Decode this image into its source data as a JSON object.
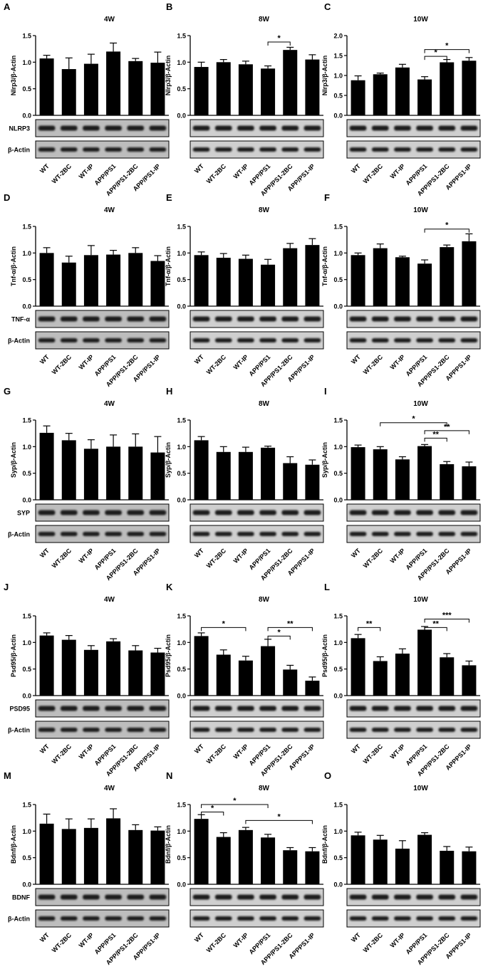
{
  "figure": {
    "groups": [
      "WT",
      "WT-2BC",
      "WT-IP",
      "APP/PS1",
      "APP/PS1-2BC",
      "APP/PS1-IP"
    ],
    "groups_alt": [
      "WT",
      "WT-2BC",
      "WT-IP",
      "APP/PS1",
      "APP/PS1-2BC",
      "APPPS1-IP"
    ],
    "blot_colors": {
      "band": "#1c1c1c",
      "background": "#cfcfcf",
      "background_4w": "#bdbdbd"
    }
  },
  "chart_data": [
    {
      "type": "bar",
      "panel": "A",
      "title": "4W",
      "ylabel": "Nlrp3/β-Actin",
      "ylim": [
        0,
        1.5
      ],
      "ticks": [
        "0.0",
        "0.5",
        "1.0",
        "1.5"
      ],
      "xlabels": "groups",
      "values": [
        1.07,
        0.87,
        0.97,
        1.2,
        1.02,
        0.99
      ],
      "errors": [
        0.06,
        0.21,
        0.18,
        0.16,
        0.05,
        0.2
      ],
      "blots": [
        "NLRP3",
        "β-Actin"
      ],
      "sig": []
    },
    {
      "type": "bar",
      "panel": "B",
      "title": "8W",
      "ylabel": "Nlrp3/β-Actin",
      "ylim": [
        0,
        1.5
      ],
      "ticks": [
        "0.0",
        "0.5",
        "1.0",
        "1.5"
      ],
      "xlabels": "groups",
      "values": [
        0.91,
        1.0,
        0.96,
        0.88,
        1.23,
        1.05
      ],
      "errors": [
        0.09,
        0.05,
        0.06,
        0.05,
        0.05,
        0.09
      ],
      "blots": [
        "",
        ""
      ],
      "sig": [
        {
          "from": 3,
          "to": 4,
          "y": 1.38,
          "label": "*"
        }
      ]
    },
    {
      "type": "bar",
      "panel": "C",
      "title": "10W",
      "ylabel": "Nlrp3/β-Actin",
      "ylim": [
        0,
        2.0
      ],
      "ticks": [
        "0.0",
        "0.5",
        "1.0",
        "1.5",
        "2.0"
      ],
      "xlabels": "groups_alt",
      "values": [
        0.88,
        1.03,
        1.2,
        0.9,
        1.33,
        1.37
      ],
      "errors": [
        0.11,
        0.03,
        0.08,
        0.07,
        0.07,
        0.08
      ],
      "blots": [
        "",
        ""
      ],
      "sig": [
        {
          "from": 3,
          "to": 5,
          "y": 1.65,
          "label": "*"
        },
        {
          "from": 3,
          "to": 4,
          "y": 1.48,
          "label": "*"
        }
      ]
    },
    {
      "type": "bar",
      "panel": "D",
      "title": "4W",
      "ylabel": "Tnf-α/β-Actin",
      "ylim": [
        0,
        1.5
      ],
      "ticks": [
        "0.0",
        "0.5",
        "1.0",
        "1.5"
      ],
      "xlabels": "groups",
      "values": [
        1.0,
        0.82,
        0.96,
        0.97,
        1.0,
        0.85
      ],
      "errors": [
        0.1,
        0.12,
        0.18,
        0.08,
        0.1,
        0.1
      ],
      "blots": [
        "TNF-α",
        "β-Actin"
      ],
      "sig": []
    },
    {
      "type": "bar",
      "panel": "E",
      "title": "8W",
      "ylabel": "Tnf-α/β-Actin",
      "ylim": [
        0,
        1.5
      ],
      "ticks": [
        "0.0",
        "0.5",
        "1.0",
        "1.5"
      ],
      "xlabels": "groups",
      "values": [
        0.96,
        0.91,
        0.89,
        0.78,
        1.09,
        1.15
      ],
      "errors": [
        0.06,
        0.08,
        0.07,
        0.1,
        0.09,
        0.12
      ],
      "blots": [
        "",
        ""
      ],
      "sig": []
    },
    {
      "type": "bar",
      "panel": "F",
      "title": "10W",
      "ylabel": "Tnf-α/β-Actin",
      "ylim": [
        0,
        1.5
      ],
      "ticks": [
        "0.0",
        "0.5",
        "1.0",
        "1.5"
      ],
      "xlabels": "groups_alt",
      "values": [
        0.96,
        1.09,
        0.92,
        0.8,
        1.11,
        1.22
      ],
      "errors": [
        0.04,
        0.08,
        0.02,
        0.07,
        0.04,
        0.14
      ],
      "blots": [
        "",
        ""
      ],
      "sig": [
        {
          "from": 3,
          "to": 5,
          "y": 1.45,
          "label": "*"
        }
      ]
    },
    {
      "type": "bar",
      "panel": "G",
      "title": "4W",
      "ylabel": "Syp/β-Actin",
      "ylim": [
        0,
        1.5
      ],
      "ticks": [
        "0.0",
        "0.5",
        "1.0",
        "1.5"
      ],
      "xlabels": "groups",
      "values": [
        1.26,
        1.12,
        0.96,
        1.0,
        1.0,
        0.89
      ],
      "errors": [
        0.13,
        0.13,
        0.17,
        0.22,
        0.24,
        0.3
      ],
      "blots": [
        "SYP",
        "β-Actin"
      ],
      "sig": []
    },
    {
      "type": "bar",
      "panel": "H",
      "title": "8W",
      "ylabel": "Syp/β-Actin",
      "ylim": [
        0,
        1.5
      ],
      "ticks": [
        "0.0",
        "0.5",
        "1.0",
        "1.5"
      ],
      "xlabels": "groups",
      "values": [
        1.12,
        0.9,
        0.9,
        0.98,
        0.69,
        0.66
      ],
      "errors": [
        0.07,
        0.1,
        0.09,
        0.03,
        0.12,
        0.09
      ],
      "blots": [
        "",
        ""
      ],
      "sig": []
    },
    {
      "type": "bar",
      "panel": "I",
      "title": "10W",
      "ylabel": "Syp/β-Actin",
      "ylim": [
        0,
        1.5
      ],
      "ticks": [
        "0.0",
        "0.5",
        "1.0",
        "1.5"
      ],
      "xlabels": "groups_alt",
      "values": [
        0.99,
        0.95,
        0.76,
        1.01,
        0.67,
        0.63
      ],
      "errors": [
        0.04,
        0.05,
        0.05,
        0.03,
        0.05,
        0.08
      ],
      "blots": [
        "",
        ""
      ],
      "sig": [
        {
          "from": 1,
          "to": 4,
          "y": 1.45,
          "label": "*"
        },
        {
          "from": 3,
          "to": 5,
          "y": 1.3,
          "label": "**"
        },
        {
          "from": 3,
          "to": 4,
          "y": 1.16,
          "label": "**"
        }
      ]
    },
    {
      "type": "bar",
      "panel": "J",
      "title": "4W",
      "ylabel": "Psd95/β-Actin",
      "ylim": [
        0,
        1.5
      ],
      "ticks": [
        "0.0",
        "0.5",
        "1.0",
        "1.5"
      ],
      "xlabels": "groups",
      "values": [
        1.13,
        1.05,
        0.86,
        1.02,
        0.85,
        0.81
      ],
      "errors": [
        0.05,
        0.08,
        0.08,
        0.05,
        0.09,
        0.08
      ],
      "blots": [
        "PSD95",
        "β-Actin"
      ],
      "sig": []
    },
    {
      "type": "bar",
      "panel": "K",
      "title": "8W",
      "ylabel": "Psd95/β-Actin",
      "ylim": [
        0,
        1.5
      ],
      "ticks": [
        "0.0",
        "0.5",
        "1.0",
        "1.5"
      ],
      "xlabels": "groups_alt",
      "values": [
        1.12,
        0.77,
        0.66,
        0.93,
        0.49,
        0.28
      ],
      "errors": [
        0.06,
        0.09,
        0.08,
        0.13,
        0.08,
        0.07
      ],
      "blots": [
        "",
        ""
      ],
      "sig": [
        {
          "from": 0,
          "to": 2,
          "y": 1.28,
          "label": "*"
        },
        {
          "from": 3,
          "to": 5,
          "y": 1.28,
          "label": "**"
        },
        {
          "from": 3,
          "to": 4,
          "y": 1.12,
          "label": "*"
        }
      ]
    },
    {
      "type": "bar",
      "panel": "L",
      "title": "10W",
      "ylabel": "Psd95/β-Actin",
      "ylim": [
        0,
        1.5
      ],
      "ticks": [
        "0.0",
        "0.5",
        "1.0",
        "1.5"
      ],
      "xlabels": "groups_alt",
      "values": [
        1.08,
        0.65,
        0.79,
        1.24,
        0.72,
        0.57
      ],
      "errors": [
        0.07,
        0.08,
        0.09,
        0.06,
        0.07,
        0.08
      ],
      "blots": [
        "",
        ""
      ],
      "sig": [
        {
          "from": 0,
          "to": 1,
          "y": 1.28,
          "label": "**"
        },
        {
          "from": 3,
          "to": 5,
          "y": 1.44,
          "label": "***"
        },
        {
          "from": 3,
          "to": 4,
          "y": 1.28,
          "label": "**"
        }
      ]
    },
    {
      "type": "bar",
      "panel": "M",
      "title": "4W",
      "ylabel": "Bdnf/β-Actin",
      "ylim": [
        0,
        1.5
      ],
      "ticks": [
        "0.0",
        "0.5",
        "1.0",
        "1.5"
      ],
      "xlabels": "groups",
      "values": [
        1.14,
        1.04,
        1.06,
        1.24,
        1.02,
        1.01
      ],
      "errors": [
        0.18,
        0.19,
        0.17,
        0.18,
        0.1,
        0.07
      ],
      "blots": [
        "BDNF",
        "β-Actin"
      ],
      "sig": []
    },
    {
      "type": "bar",
      "panel": "N",
      "title": "8W",
      "ylabel": "Bdnf/β-Actin",
      "ylim": [
        0,
        1.5
      ],
      "ticks": [
        "0.0",
        "0.5",
        "1.0",
        "1.5"
      ],
      "xlabels": "groups_alt",
      "values": [
        1.23,
        0.89,
        1.02,
        0.88,
        0.64,
        0.62
      ],
      "errors": [
        0.08,
        0.08,
        0.05,
        0.06,
        0.05,
        0.07
      ],
      "blots": [
        "",
        ""
      ],
      "sig": [
        {
          "from": 0,
          "to": 1,
          "y": 1.36,
          "label": "*"
        },
        {
          "from": 0,
          "to": 3,
          "y": 1.5,
          "label": "*"
        },
        {
          "from": 2,
          "to": 5,
          "y": 1.2,
          "label": "*"
        }
      ]
    },
    {
      "type": "bar",
      "panel": "O",
      "title": "10W",
      "ylabel": "Bdnf/β-Actin",
      "ylim": [
        0,
        1.5
      ],
      "ticks": [
        "0.0",
        "0.5",
        "1.0",
        "1.5"
      ],
      "xlabels": "groups_alt",
      "values": [
        0.92,
        0.84,
        0.67,
        0.93,
        0.63,
        0.62
      ],
      "errors": [
        0.06,
        0.08,
        0.15,
        0.04,
        0.08,
        0.08
      ],
      "blots": [
        "",
        ""
      ],
      "sig": []
    }
  ]
}
